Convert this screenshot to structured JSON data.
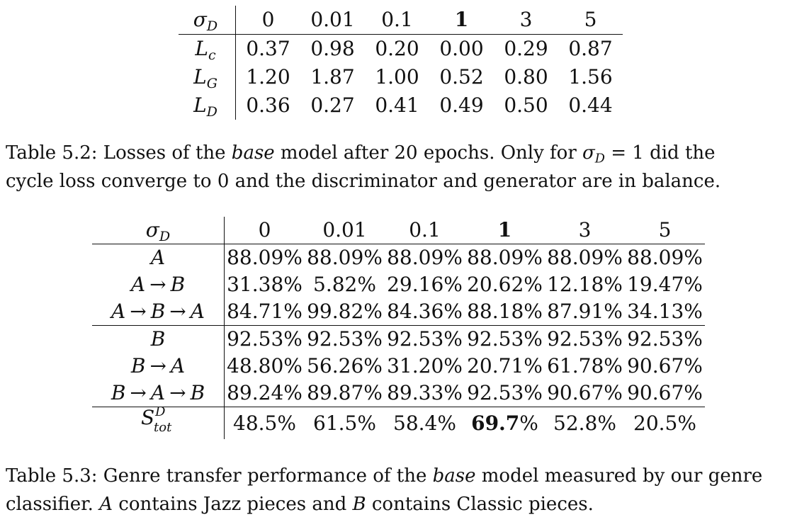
{
  "table52": {
    "row_header_symbol": "σ",
    "row_header_sub": "D",
    "columns": [
      "0",
      "0.01",
      "0.1",
      "1",
      "3",
      "5"
    ],
    "bold_column_index": 3,
    "rows": [
      {
        "symbol": "L",
        "sub": "c",
        "values": [
          "0.37",
          "0.98",
          "0.20",
          "0.00",
          "0.29",
          "0.87"
        ]
      },
      {
        "symbol": "L",
        "sub": "G",
        "values": [
          "1.20",
          "1.87",
          "1.00",
          "0.52",
          "0.80",
          "1.56"
        ]
      },
      {
        "symbol": "L",
        "sub": "D",
        "values": [
          "0.36",
          "0.27",
          "0.41",
          "0.49",
          "0.50",
          "0.44"
        ]
      }
    ]
  },
  "caption52": {
    "prefix": "Table 5.2: Losses of the ",
    "italic": "base",
    "middle": " model after 20 epochs. Only for ",
    "sigma": "σ",
    "sigma_sub": "D",
    "equals": " = 1 did the",
    "line2": "cycle loss converge to 0 and the discriminator and generator are in balance."
  },
  "table53": {
    "row_header_symbol": "σ",
    "row_header_sub": "D",
    "columns": [
      "0",
      "0.01",
      "0.1",
      "1",
      "3",
      "5"
    ],
    "bold_column_index": 3,
    "rows": [
      {
        "label": [
          "A"
        ],
        "values": [
          "88.09%",
          "88.09%",
          "88.09%",
          "88.09%",
          "88.09%",
          "88.09%"
        ]
      },
      {
        "label": [
          "A",
          "B"
        ],
        "values": [
          "31.38%",
          "5.82%",
          "29.16%",
          "20.62%",
          "12.18%",
          "19.47%"
        ]
      },
      {
        "label": [
          "A",
          "B",
          "A"
        ],
        "values": [
          "84.71%",
          "99.82%",
          "84.36%",
          "88.18%",
          "87.91%",
          "34.13%"
        ]
      },
      {
        "label": [
          "B"
        ],
        "values": [
          "92.53%",
          "92.53%",
          "92.53%",
          "92.53%",
          "92.53%",
          "92.53%"
        ]
      },
      {
        "label": [
          "B",
          "A"
        ],
        "values": [
          "48.80%",
          "56.26%",
          "31.20%",
          "20.71%",
          "61.78%",
          "90.67%"
        ]
      },
      {
        "label": [
          "B",
          "A",
          "B"
        ],
        "values": [
          "89.24%",
          "89.87%",
          "89.33%",
          "92.53%",
          "90.67%",
          "90.67%"
        ]
      }
    ],
    "arrow": "→",
    "total_row": {
      "symbol": "S",
      "sup": "D",
      "sub": "tot",
      "values": [
        "48.5%",
        "61.5%",
        "58.4%",
        "69.7%",
        "52.8%",
        "20.5%"
      ],
      "bold_value_index": 3,
      "bold_part": "69.7",
      "bold_suffix": "%"
    }
  },
  "caption53": {
    "prefix": "Table 5.3: Genre transfer performance of the ",
    "italic": "base",
    "suffix": " model measured by our genre",
    "line2_pre": "classifier. ",
    "a": "A",
    "mid": " contains Jazz pieces and ",
    "b": "B",
    "end": " contains Classic pieces."
  }
}
